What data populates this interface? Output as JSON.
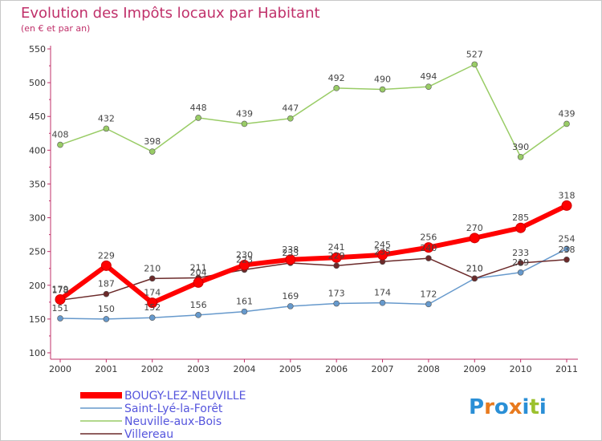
{
  "chart_data": {
    "type": "line",
    "title": "Evolution des Impôts locaux par Habitant",
    "subtitle": "(en € et par an)",
    "x": [
      "2000",
      "2001",
      "2002",
      "2003",
      "2004",
      "2005",
      "2006",
      "2007",
      "2008",
      "2009",
      "2010",
      "2011"
    ],
    "ylim": [
      100,
      550
    ],
    "yticks": [
      100,
      150,
      200,
      250,
      300,
      350,
      400,
      450,
      500,
      550
    ],
    "grid": false,
    "legend_position": "bottom-left",
    "series": [
      {
        "name": "BOUGY-LEZ-NEUVILLE",
        "color": "#ff0000",
        "values": [
          179,
          229,
          174,
          204,
          230,
          238,
          241,
          245,
          256,
          270,
          285,
          318
        ]
      },
      {
        "name": "Saint-Lyé-la-Forêt",
        "color": "#6699cc",
        "values": [
          151,
          150,
          152,
          156,
          161,
          169,
          173,
          174,
          172,
          210,
          219,
          254
        ]
      },
      {
        "name": "Neuville-aux-Bois",
        "color": "#99cc66",
        "values": [
          408,
          432,
          398,
          448,
          439,
          447,
          492,
          490,
          494,
          527,
          390,
          439
        ]
      },
      {
        "name": "Villereau",
        "color": "#6b2a2a",
        "values": [
          178,
          187,
          210,
          211,
          223,
          233,
          229,
          235,
          240,
          210,
          233,
          238
        ]
      }
    ]
  },
  "brand": {
    "letters": [
      "P",
      "r",
      "o",
      "x",
      "i",
      "t",
      "i"
    ],
    "colors": [
      "#2a8fd6",
      "#e87a1e",
      "#2a8fd6",
      "#e87a1e",
      "#2a8fd6",
      "#9cc12e",
      "#2a8fd6"
    ]
  }
}
